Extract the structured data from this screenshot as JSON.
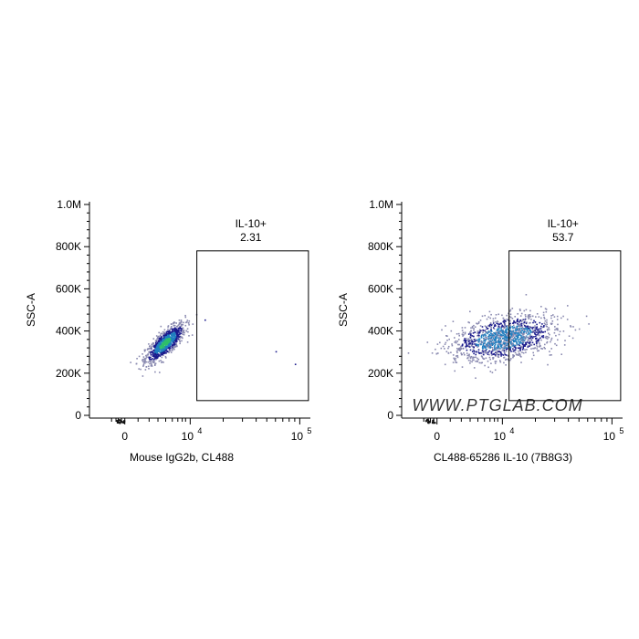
{
  "watermark": "WWW.PTGLAB.COM",
  "colors": {
    "axis": "#000000",
    "gate": "#000000",
    "density_low": "#1a1a8c",
    "density_mid": "#1f7fc0",
    "density_high": "#2fbf6a",
    "density_light": "#8a8ab0",
    "watermark": "#c8c8c8"
  },
  "chart_data": [
    {
      "type": "scatter",
      "panel": "isotype-control",
      "xlabel": "Mouse IgG2b, CL488",
      "ylabel": "SSC-A",
      "x_scale": "biexponential",
      "x_ticks": [
        {
          "value": 0,
          "label": "0",
          "pos": 0.16
        },
        {
          "value": 10000,
          "label": "10",
          "exp": "4",
          "pos": 0.456
        },
        {
          "value": 100000,
          "label": "10",
          "exp": "5",
          "pos": 0.952
        }
      ],
      "y_ticks": [
        {
          "value": 0,
          "label": "0"
        },
        {
          "value": 200000,
          "label": "200K"
        },
        {
          "value": 400000,
          "label": "400K"
        },
        {
          "value": 600000,
          "label": "600K"
        },
        {
          "value": 800000,
          "label": "800K"
        },
        {
          "value": 1000000,
          "label": "1.0M"
        }
      ],
      "ylim": [
        0,
        1000000
      ],
      "gate": {
        "name": "IL-10+",
        "percent": "2.31",
        "x_from": 11500,
        "x_to": 120000,
        "y_from": 70000,
        "y_to": 780000
      },
      "population": {
        "center_x_pos": 0.34,
        "center_y": 345000,
        "spread_x_pos": 0.045,
        "spread_y": 65000,
        "tilt": 0.55,
        "count": 900
      },
      "outliers": [
        {
          "x": 60000,
          "y": 305000
        },
        {
          "x": 90000,
          "y": 245000
        },
        {
          "x": 13500,
          "y": 455000
        }
      ]
    },
    {
      "type": "scatter",
      "panel": "il10-stained",
      "xlabel": "CL488-65286 IL-10 (7B8G3)",
      "ylabel": "SSC-A",
      "x_scale": "biexponential",
      "x_ticks": [
        {
          "value": 0,
          "label": "0",
          "pos": 0.16
        },
        {
          "value": 10000,
          "label": "10",
          "exp": "4",
          "pos": 0.456
        },
        {
          "value": 100000,
          "label": "10",
          "exp": "5",
          "pos": 0.952
        }
      ],
      "y_ticks": [
        {
          "value": 0,
          "label": "0"
        },
        {
          "value": 200000,
          "label": "200K"
        },
        {
          "value": 400000,
          "label": "400K"
        },
        {
          "value": 600000,
          "label": "600K"
        },
        {
          "value": 800000,
          "label": "800K"
        },
        {
          "value": 1000000,
          "label": "1.0M"
        }
      ],
      "ylim": [
        0,
        1000000
      ],
      "gate": {
        "name": "IL-10+",
        "percent": "53.7",
        "x_from": 11500,
        "x_to": 120000,
        "y_from": 70000,
        "y_to": 780000
      },
      "population": {
        "center_x_pos": 0.46,
        "center_y": 370000,
        "spread_x_pos": 0.115,
        "spread_y": 70000,
        "tilt": 0.3,
        "count": 1400
      },
      "outliers": []
    }
  ]
}
